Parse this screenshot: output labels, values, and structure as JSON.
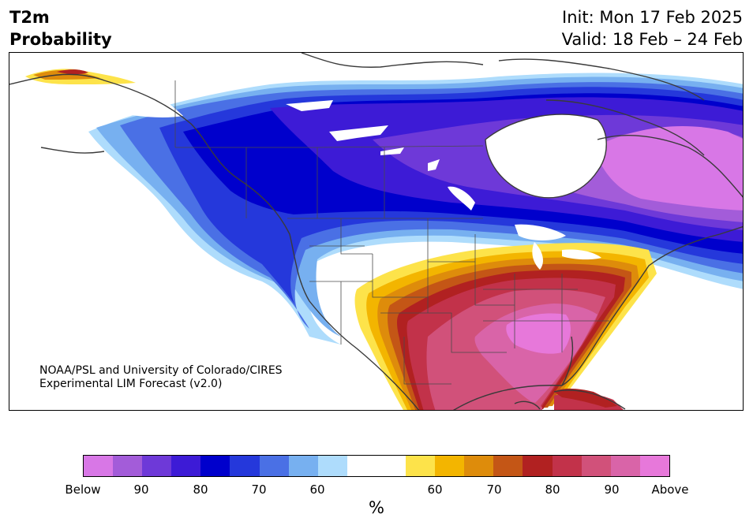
{
  "header": {
    "title_line1": "T2m",
    "title_line2": "Probability",
    "init_text": "Init: Mon 17 Feb 2025",
    "valid_text": "Valid: 18 Feb – 24 Feb"
  },
  "map": {
    "credit_line1": "NOAA/PSL and University of Colorado/CIRES",
    "credit_line2": "Experimental LIM Forecast (v2.0)"
  },
  "colorbar": {
    "units": "%",
    "tick_labels": [
      "Below",
      "90",
      "80",
      "70",
      "60",
      "60",
      "70",
      "80",
      "90",
      "Above"
    ],
    "colors": [
      "#d877e6",
      "#a35cd9",
      "#6e39d8",
      "#3d1bd6",
      "#0000cc",
      "#2538db",
      "#4a70e5",
      "#77b0f0",
      "#aedcfc",
      "#ffffff",
      "#ffffff",
      "#fde34a",
      "#f3b500",
      "#de8c0b",
      "#c45616",
      "#b12121",
      "#c2324a",
      "#d1517a",
      "#d964a8",
      "#e778da"
    ]
  }
}
